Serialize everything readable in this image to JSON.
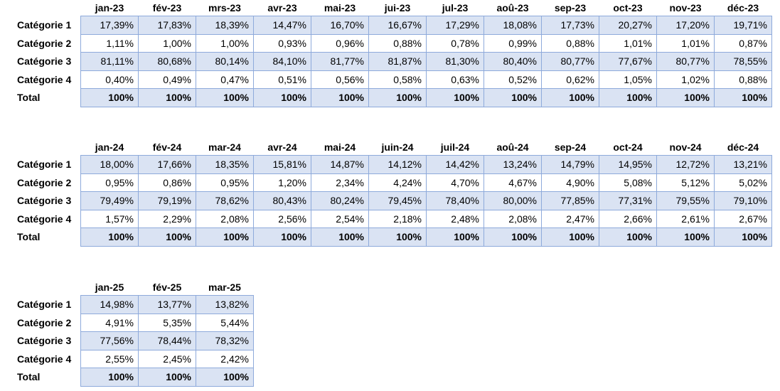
{
  "tables": [
    {
      "columns": [
        "jan-23",
        "fév-23",
        "mrs-23",
        "avr-23",
        "mai-23",
        "jui-23",
        "jul-23",
        "aoû-23",
        "sep-23",
        "oct-23",
        "nov-23",
        "déc-23"
      ],
      "rows": [
        {
          "label": "Catégorie 1",
          "cells": [
            "17,39%",
            "17,83%",
            "18,39%",
            "14,47%",
            "16,70%",
            "16,67%",
            "17,29%",
            "18,08%",
            "17,73%",
            "20,27%",
            "17,20%",
            "19,71%"
          ]
        },
        {
          "label": "Catégorie 2",
          "cells": [
            "1,11%",
            "1,00%",
            "1,00%",
            "0,93%",
            "0,96%",
            "0,88%",
            "0,78%",
            "0,99%",
            "0,88%",
            "1,01%",
            "1,01%",
            "0,87%"
          ]
        },
        {
          "label": "Catégorie 3",
          "cells": [
            "81,11%",
            "80,68%",
            "80,14%",
            "84,10%",
            "81,77%",
            "81,87%",
            "81,30%",
            "80,40%",
            "80,77%",
            "77,67%",
            "80,77%",
            "78,55%"
          ]
        },
        {
          "label": "Catégorie 4",
          "cells": [
            "0,40%",
            "0,49%",
            "0,47%",
            "0,51%",
            "0,56%",
            "0,58%",
            "0,63%",
            "0,52%",
            "0,62%",
            "1,05%",
            "1,02%",
            "0,88%"
          ]
        },
        {
          "label": "Total",
          "cells": [
            "100%",
            "100%",
            "100%",
            "100%",
            "100%",
            "100%",
            "100%",
            "100%",
            "100%",
            "100%",
            "100%",
            "100%"
          ]
        }
      ]
    },
    {
      "columns": [
        "jan-24",
        "fév-24",
        "mar-24",
        "avr-24",
        "mai-24",
        "juin-24",
        "juil-24",
        "aoû-24",
        "sep-24",
        "oct-24",
        "nov-24",
        "déc-24"
      ],
      "rows": [
        {
          "label": "Catégorie 1",
          "cells": [
            "18,00%",
            "17,66%",
            "18,35%",
            "15,81%",
            "14,87%",
            "14,12%",
            "14,42%",
            "13,24%",
            "14,79%",
            "14,95%",
            "12,72%",
            "13,21%"
          ]
        },
        {
          "label": "Catégorie 2",
          "cells": [
            "0,95%",
            "0,86%",
            "0,95%",
            "1,20%",
            "2,34%",
            "4,24%",
            "4,70%",
            "4,67%",
            "4,90%",
            "5,08%",
            "5,12%",
            "5,02%"
          ]
        },
        {
          "label": "Catégorie 3",
          "cells": [
            "79,49%",
            "79,19%",
            "78,62%",
            "80,43%",
            "80,24%",
            "79,45%",
            "78,40%",
            "80,00%",
            "77,85%",
            "77,31%",
            "79,55%",
            "79,10%"
          ]
        },
        {
          "label": "Catégorie 4",
          "cells": [
            "1,57%",
            "2,29%",
            "2,08%",
            "2,56%",
            "2,54%",
            "2,18%",
            "2,48%",
            "2,08%",
            "2,47%",
            "2,66%",
            "2,61%",
            "2,67%"
          ]
        },
        {
          "label": "Total",
          "cells": [
            "100%",
            "100%",
            "100%",
            "100%",
            "100%",
            "100%",
            "100%",
            "100%",
            "100%",
            "100%",
            "100%",
            "100%"
          ]
        }
      ]
    },
    {
      "columns": [
        "jan-25",
        "fév-25",
        "mar-25"
      ],
      "rows": [
        {
          "label": "Catégorie 1",
          "cells": [
            "14,98%",
            "13,77%",
            "13,82%"
          ]
        },
        {
          "label": "Catégorie 2",
          "cells": [
            "4,91%",
            "5,35%",
            "5,44%"
          ]
        },
        {
          "label": "Catégorie 3",
          "cells": [
            "77,56%",
            "78,44%",
            "78,32%"
          ]
        },
        {
          "label": "Catégorie 4",
          "cells": [
            "2,55%",
            "2,45%",
            "2,42%"
          ]
        },
        {
          "label": "Total",
          "cells": [
            "100%",
            "100%",
            "100%"
          ]
        }
      ]
    }
  ]
}
